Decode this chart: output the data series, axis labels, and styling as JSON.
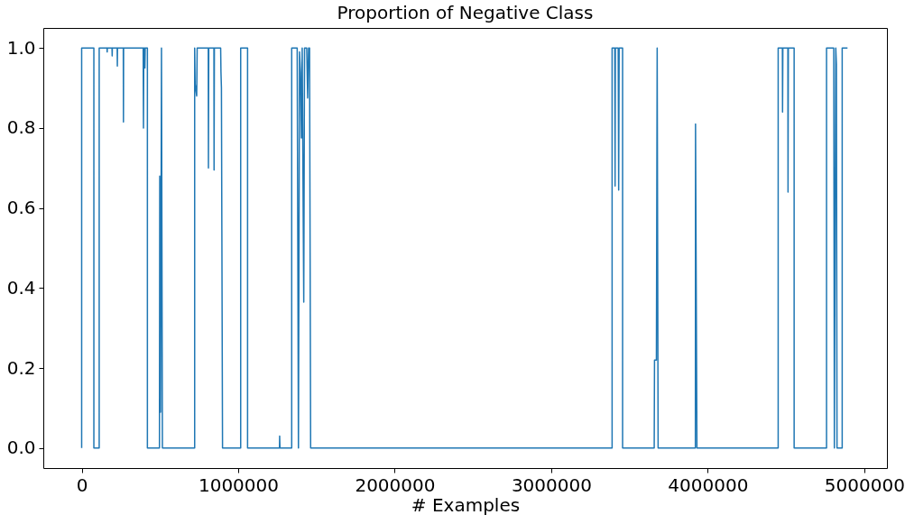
{
  "chart_data": {
    "type": "line",
    "title": "Proportion of Negative Class",
    "xlabel": "# Examples",
    "x": [
      0,
      0,
      78000,
      78000,
      112000,
      112000,
      162000,
      163000,
      164000,
      194000,
      195000,
      196000,
      227000,
      228000,
      229000,
      266000,
      267000,
      268000,
      393000,
      395000,
      397000,
      402000,
      404000,
      406000,
      420000,
      420000,
      497000,
      499000,
      504000,
      510000,
      516000,
      722000,
      722000,
      725000,
      735000,
      738000,
      809000,
      810000,
      812000,
      845000,
      846000,
      848000,
      888000,
      890000,
      893000,
      900000,
      1016000,
      1016000,
      1060000,
      1060000,
      1264000,
      1265000,
      1267000,
      1342000,
      1342000,
      1377000,
      1385000,
      1392000,
      1398000,
      1404000,
      1409000,
      1419000,
      1424000,
      1438000,
      1444000,
      1450000,
      1456000,
      1463000,
      3389000,
      3389000,
      3406000,
      3408000,
      3410000,
      3428000,
      3431000,
      3434000,
      3456000,
      3456000,
      3658000,
      3660000,
      3672000,
      3677000,
      3683000,
      3921000,
      3922000,
      3931000,
      4450000,
      4450000,
      4477000,
      4478000,
      4480000,
      4512000,
      4513000,
      4515000,
      4552000,
      4552000,
      4759000,
      4759000,
      4805000,
      4809000,
      4818000,
      4822000,
      4826000,
      4859000,
      4859000,
      4893000
    ],
    "series": [
      {
        "color": "#1f77b4",
        "values": [
          0,
          1,
          1,
          0,
          0,
          1,
          1,
          0.99,
          1,
          1,
          0.98,
          1,
          1,
          0.955,
          1,
          1,
          0.815,
          1,
          1,
          0.8,
          1,
          1,
          0.95,
          1,
          1,
          0,
          0,
          0.68,
          0.09,
          1,
          0,
          0,
          1,
          0.91,
          0.88,
          1,
          1,
          0.7,
          1,
          1,
          0.695,
          1,
          1,
          0.94,
          0.9,
          0,
          0,
          1,
          1,
          0,
          0,
          0.03,
          0,
          0,
          1,
          1,
          0,
          0.99,
          0.94,
          0.775,
          1,
          0.365,
          1,
          1,
          0.875,
          1,
          1,
          0,
          0,
          1,
          1,
          0.655,
          1,
          1,
          0.645,
          1,
          1,
          0,
          0,
          0.22,
          0.22,
          1,
          0,
          0,
          0.81,
          0,
          0,
          1,
          1,
          0.84,
          1,
          1,
          0.64,
          1,
          1,
          0,
          0,
          1,
          1,
          0,
          1,
          0.96,
          0,
          0,
          1,
          1
        ]
      }
    ],
    "xlim": [
      -245000,
      5145000
    ],
    "xticks": [
      0,
      1000000,
      2000000,
      3000000,
      4000000,
      5000000
    ],
    "ylim": [
      -0.05,
      1.05
    ],
    "yticks": [
      {
        "value": 0,
        "label": "0.0"
      },
      0.2,
      0.4,
      0.6,
      0.8,
      {
        "value": 1,
        "label": "1.0"
      }
    ],
    "grid": false,
    "legend": false,
    "line_style": "solid",
    "marker": "none"
  }
}
